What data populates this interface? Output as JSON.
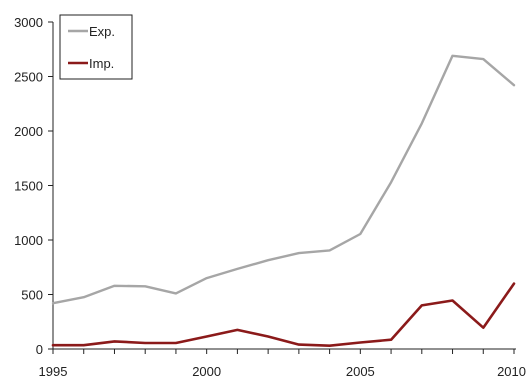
{
  "chart_data": {
    "type": "line",
    "title": "",
    "xlabel": "",
    "ylabel": "",
    "xlim": [
      1995,
      2010
    ],
    "ylim": [
      0,
      3000
    ],
    "x_ticks": [
      1995,
      2000,
      2005,
      2010
    ],
    "x_tick_labels": [
      "1995",
      "2000",
      "2005",
      "2010"
    ],
    "y_ticks": [
      0,
      500,
      1000,
      1500,
      2000,
      2500,
      3000
    ],
    "y_tick_labels": [
      "0",
      "500",
      "1000",
      "1500",
      "2000",
      "2500",
      "3000"
    ],
    "grid": false,
    "legend_position": "top-left",
    "x": [
      1995,
      1996,
      1997,
      1998,
      1999,
      2000,
      2001,
      2002,
      2003,
      2004,
      2005,
      2006,
      2007,
      2008,
      2009,
      2010
    ],
    "series": [
      {
        "name": "Exp.",
        "color": "#a6a6a6",
        "values": [
          420,
          475,
          580,
          575,
          510,
          650,
          735,
          815,
          880,
          905,
          1055,
          1530,
          2070,
          2690,
          2660,
          2420
        ]
      },
      {
        "name": "Imp.",
        "color": "#8b1a1a",
        "values": [
          35,
          35,
          70,
          55,
          55,
          115,
          175,
          115,
          40,
          30,
          60,
          85,
          400,
          445,
          195,
          600
        ]
      }
    ]
  }
}
